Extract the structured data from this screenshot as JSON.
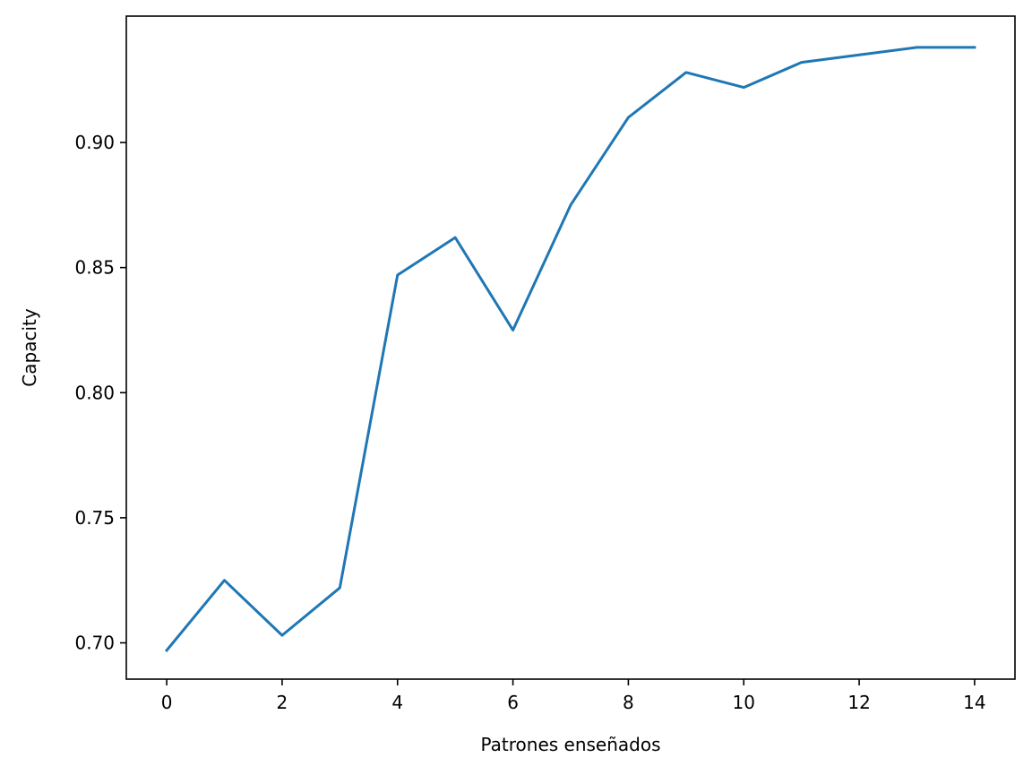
{
  "chart_data": {
    "type": "line",
    "title": "",
    "xlabel": "Patrones enseñados",
    "ylabel": "Capacity",
    "xlim": [
      -0.7,
      14.7
    ],
    "ylim": [
      0.6855,
      0.9505
    ],
    "xticks": [
      0,
      2,
      4,
      6,
      8,
      10,
      12,
      14
    ],
    "xtick_labels": [
      "0",
      "2",
      "4",
      "6",
      "8",
      "10",
      "12",
      "14"
    ],
    "yticks": [
      0.7,
      0.75,
      0.8,
      0.85,
      0.9
    ],
    "ytick_labels": [
      "0.70",
      "0.75",
      "0.80",
      "0.85",
      "0.90"
    ],
    "grid": false,
    "legend": "none",
    "series": [
      {
        "color": "#1f77b4",
        "x": [
          0,
          1,
          2,
          3,
          4,
          5,
          6,
          7,
          8,
          9,
          10,
          11,
          12,
          13,
          14
        ],
        "y": [
          0.697,
          0.725,
          0.703,
          0.722,
          0.847,
          0.862,
          0.825,
          0.875,
          0.91,
          0.928,
          0.922,
          0.932,
          0.935,
          0.938,
          0.938
        ]
      }
    ]
  }
}
